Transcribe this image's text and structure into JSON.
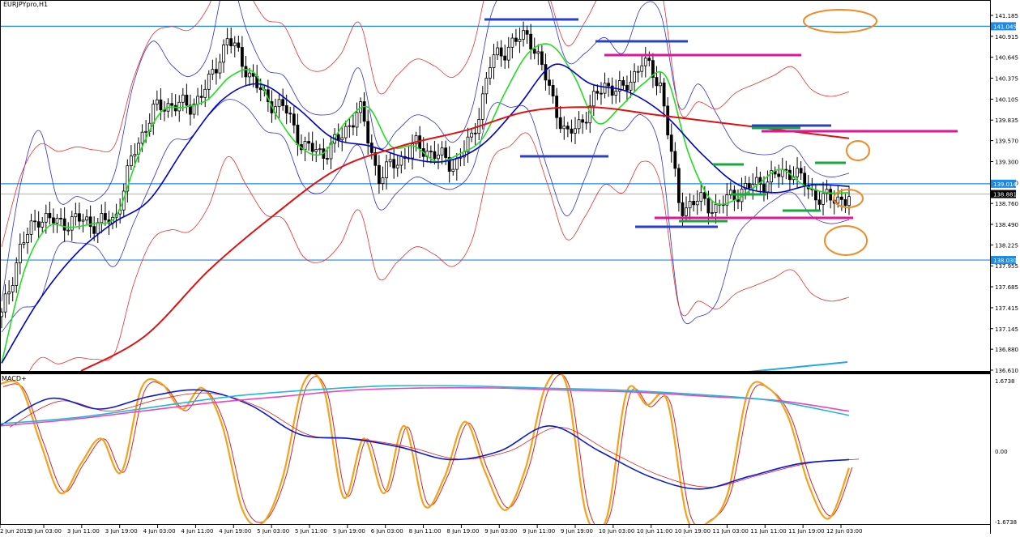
{
  "window": {
    "title": "EURJPYpro,H1"
  },
  "colors": {
    "candle": "#000000",
    "bollinger": "#2f2fd0",
    "ma_fast": "#22dd22",
    "ma_mid": "#0000cc",
    "ma_slow": "#e01010",
    "envelope": "#e83030",
    "hline": "#1e88e5",
    "grey_line": "#b0b0b0",
    "level_blue": "#2a3fc8",
    "level_magenta": "#e0159a",
    "level_green": "#16a83a",
    "circle": "#f08a24",
    "macd_orange": "#f5a21b",
    "macd_red": "#e02020",
    "macd_blue": "#0a1ad0",
    "macd_pink": "#ee44bb",
    "macd_cyan": "#20b8d8",
    "tag_bg": "#1e88e5",
    "tag_fg": "#ffffff"
  },
  "chart_data": [
    {
      "type": "candlestick",
      "title": "EURJPYpro,H1",
      "ylim": [
        136.61,
        141.185
      ],
      "y_ticks": [
        141.185,
        140.915,
        140.645,
        140.375,
        140.105,
        139.835,
        139.57,
        139.3,
        139.03,
        138.76,
        138.49,
        138.225,
        137.955,
        137.685,
        137.415,
        137.145,
        136.88,
        136.61
      ],
      "y_tick_labels": [
        "141.185",
        "140.915",
        "140.645",
        "140.375",
        "140.105",
        "139.835",
        "139.570",
        "139.300",
        "139.030",
        "138.760",
        "138.490",
        "138.225",
        "137.955",
        "137.685",
        "137.415",
        "137.145",
        "136.880",
        "136.610"
      ],
      "price_tags": [
        {
          "label": "141.045",
          "value": 141.045,
          "kind": "hline"
        },
        {
          "label": "139.014",
          "value": 139.014,
          "kind": "hline"
        },
        {
          "label": "138.881",
          "value": 138.881,
          "kind": "current"
        },
        {
          "label": "138.030",
          "value": 138.03,
          "kind": "hline"
        }
      ],
      "horizontal_lines": [
        141.045,
        139.014,
        138.03
      ],
      "current_price": 138.881,
      "x_tick_labels": [
        "2 Jun 2015",
        "3 Jun 03:00",
        "3 Jun 11:00",
        "3 Jun 19:00",
        "4 Jun 03:00",
        "4 Jun 11:00",
        "4 Jun 19:00",
        "5 Jun 03:00",
        "5 Jun 11:00",
        "5 Jun 19:00",
        "6 Jun 03:00",
        "8 Jun 11:00",
        "8 Jun 19:00",
        "9 Jun 03:00",
        "9 Jun 11:00",
        "9 Jun 19:00",
        "10 Jun 03:00",
        "10 Jun 11:00",
        "10 Jun 19:00",
        "11 Jun 03:00",
        "11 Jun 11:00",
        "11 Jun 19:00",
        "12 Jun 03:00"
      ],
      "close_path": [
        137.3,
        138.2,
        138.6,
        138.5,
        138.55,
        138.5,
        138.55,
        139.4,
        139.95,
        140.05,
        140.0,
        140.3,
        140.9,
        140.5,
        140.1,
        140.0,
        139.5,
        139.4,
        139.6,
        140.0,
        139.1,
        139.3,
        139.5,
        139.4,
        139.25,
        139.6,
        140.6,
        140.8,
        140.95,
        140.3,
        139.6,
        139.9,
        140.3,
        140.2,
        140.6,
        140.3,
        138.7,
        138.8,
        138.7,
        138.9,
        139.0,
        139.1,
        139.2,
        138.9,
        138.8,
        138.85
      ],
      "series_ma": [
        {
          "name": "ma-fast",
          "values": [
            136.7,
            137.9,
            138.45,
            138.45,
            138.5,
            138.6,
            139.4,
            139.95,
            140.0,
            140.1,
            140.4,
            140.45,
            139.9,
            139.5,
            139.4,
            139.8,
            140.0,
            139.5,
            139.5,
            139.3,
            139.4,
            139.6,
            140.2,
            140.7,
            140.8,
            140.4,
            139.8,
            140.0,
            140.3,
            140.4,
            139.4,
            138.8,
            138.8,
            139.0,
            139.2,
            139.0,
            138.9,
            138.9
          ]
        },
        {
          "name": "ma-mid",
          "values": [
            136.7,
            137.5,
            138.1,
            138.5,
            138.8,
            139.5,
            140.1,
            140.3,
            140.0,
            139.6,
            139.5,
            139.35,
            139.3,
            139.5,
            140.0,
            140.55,
            140.3,
            140.2,
            139.9,
            139.4,
            139.0,
            138.9,
            139.0,
            138.98
          ]
        },
        {
          "name": "ma-slow",
          "values": [
            136.6,
            137.05,
            137.9,
            138.6,
            139.2,
            139.5,
            139.7,
            139.95,
            140.0,
            139.9,
            139.8,
            139.7,
            139.6
          ]
        }
      ]
    },
    {
      "type": "line",
      "title": "MACD+",
      "ylim": [
        -1.6738,
        1.6738
      ],
      "y_tick_labels": [
        "1.6738",
        "0.00",
        "-1.6738"
      ],
      "series": [
        {
          "name": "orange",
          "values": [
            1.6,
            1.55,
            0.2,
            -1.0,
            -0.3,
            0.3,
            -0.5,
            1.5,
            1.6,
            1.0,
            1.5,
            0.6,
            -1.4,
            -1.7,
            -0.6,
            1.6,
            1.5,
            -1.1,
            0.3,
            -1.0,
            0.6,
            -1.3,
            -0.6,
            0.7,
            -0.5,
            -1.4,
            -0.4,
            1.55,
            1.6,
            -1.5,
            -1.6,
            1.4,
            1.1,
            1.2,
            -1.6,
            -1.7,
            -1.0,
            1.4,
            1.5,
            0.8,
            -0.8,
            -1.6,
            -0.4
          ]
        },
        {
          "name": "blue",
          "values": [
            0.6,
            1.25,
            1.0,
            1.3,
            1.45,
            1.1,
            0.4,
            0.3,
            0.1,
            -0.2,
            0.0,
            0.6,
            0.0,
            -0.6,
            -0.9,
            -0.6,
            -0.3,
            -0.2
          ]
        },
        {
          "name": "pink",
          "values": [
            0.6,
            0.75,
            0.95,
            1.15,
            1.3,
            1.45,
            1.5,
            1.5,
            1.45,
            1.4,
            1.3,
            1.2,
            0.95
          ]
        },
        {
          "name": "cyan",
          "values": [
            0.65,
            0.8,
            1.05,
            1.3,
            1.45,
            1.55,
            1.55,
            1.5,
            1.45,
            1.35,
            1.2,
            0.85
          ]
        }
      ]
    }
  ]
}
